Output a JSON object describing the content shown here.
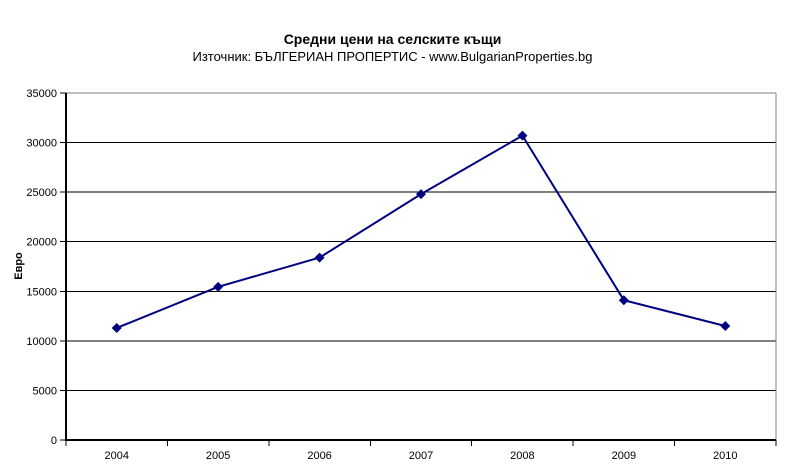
{
  "chart": {
    "title": "Средни цени на селските къщи",
    "subtitle": "Източник: БЪЛГЕРИАН ПРОПЕРТИС - www.BulgarianProperties.bg",
    "ylabel": "Евро"
  },
  "chart_data": {
    "type": "line",
    "title": "Средни цени на селските къщи",
    "subtitle": "Източник: БЪЛГЕРИАН ПРОПЕРТИС - www.BulgarianProperties.bg",
    "xlabel": "",
    "ylabel": "Евро",
    "categories": [
      "2004",
      "2005",
      "2006",
      "2007",
      "2008",
      "2009",
      "2010"
    ],
    "values": [
      11300,
      15450,
      18400,
      24800,
      30700,
      14100,
      11500
    ],
    "ylim": [
      0,
      35000
    ],
    "ytick_step": 5000,
    "ytick_labels": [
      "0",
      "5000",
      "10000",
      "15000",
      "20000",
      "25000",
      "30000",
      "35000"
    ],
    "grid": "horizontal",
    "legend": "none",
    "marker": "diamond",
    "colors": {
      "line": "#000080",
      "marker": "#000080",
      "gridline": "#000000",
      "axis": "#000000",
      "plot_border": "#808080",
      "background": "#ffffff",
      "text": "#000000"
    }
  }
}
